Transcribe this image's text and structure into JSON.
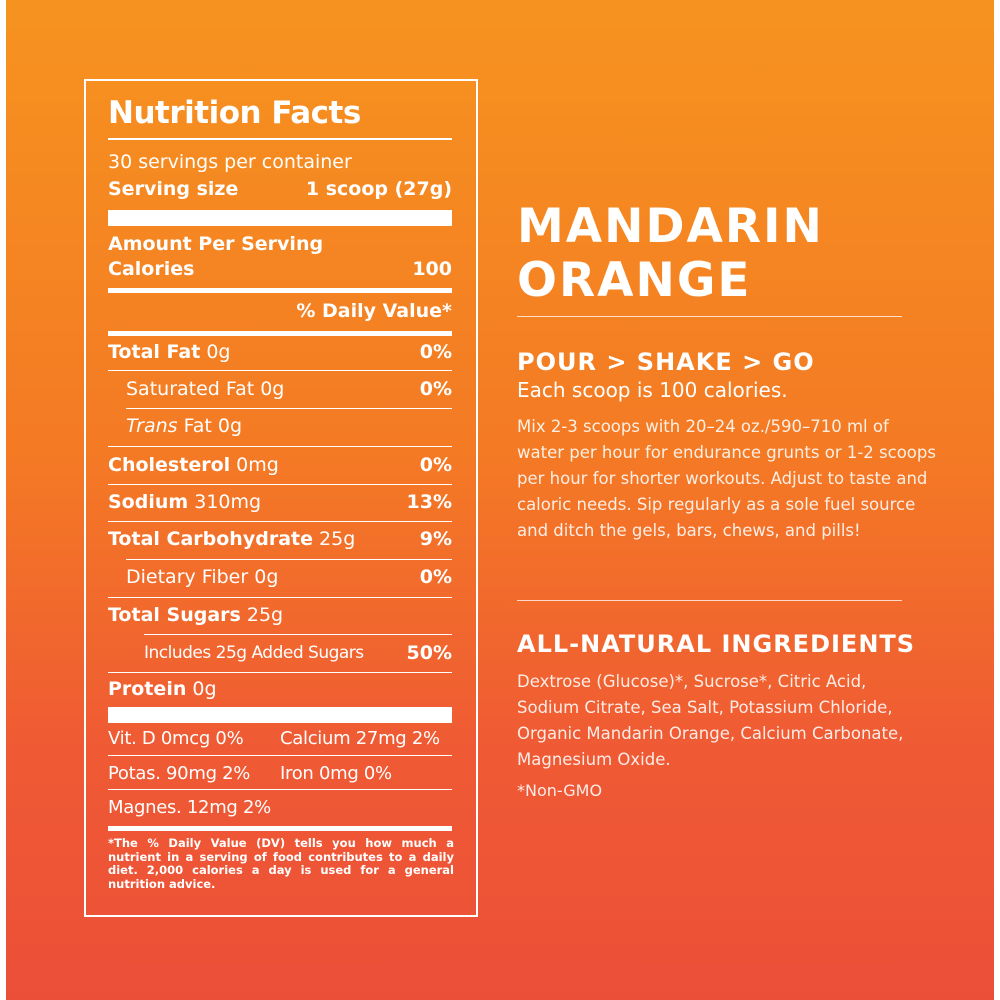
{
  "nutrition": {
    "title": "Nutrition Facts",
    "servings": "30 servings per container",
    "serving_size_label": "Serving size",
    "serving_size_value": "1 scoop (27g)",
    "amount_per_serving": "Amount Per Serving",
    "calories_label": "Calories",
    "calories_value": "100",
    "dv_header": "% Daily Value*",
    "rows": [
      {
        "label": "Total Fat",
        "amount": " 0g",
        "dv": "0%"
      },
      {
        "label": "Saturated Fat",
        "amount": " 0g",
        "dv": "0%"
      },
      {
        "label_italic": "Trans",
        "label": " Fat",
        "amount": " 0g",
        "dv": ""
      },
      {
        "label": "Cholesterol",
        "amount": " 0mg",
        "dv": "0%"
      },
      {
        "label": "Sodium",
        "amount": " 310mg",
        "dv": "13%"
      },
      {
        "label": "Total Carbohydrate",
        "amount": " 25g",
        "dv": "9%"
      },
      {
        "label": "Dietary Fiber",
        "amount": " 0g",
        "dv": "0%"
      },
      {
        "label": "Total Sugars",
        "amount": " 25g",
        "dv": ""
      },
      {
        "label": "Includes 25g Added Sugars",
        "amount": "",
        "dv": "50%"
      },
      {
        "label": "Protein",
        "amount": " 0g",
        "dv": ""
      }
    ],
    "vitamins": [
      {
        "left": "Vit. D 0mcg 0%",
        "right": "Calcium 27mg 2%"
      },
      {
        "left": "Potas. 90mg 2%",
        "right": "Iron 0mg 0%"
      },
      {
        "left": "Magnes. 12mg 2%",
        "right": ""
      }
    ],
    "footnote": "*The % Daily Value (DV) tells you how much a nutrient in a serving of food contributes to a daily diet. 2,000 calories a day is used for a general nutrition advice."
  },
  "product": {
    "title_line1": "MANDARIN",
    "title_line2": "ORANGE",
    "directions_heading": "POUR > SHAKE > GO",
    "directions_sub": "Each scoop is 100 calories.",
    "directions_body": "Mix 2-3 scoops with 20–24 oz./590–710 ml of water per hour for endurance grunts or 1-2 scoops per hour for shorter workouts. Adjust to taste and caloric needs. Sip regularly as a sole fuel source and ditch the gels, bars, chews, and pills!",
    "ingredients_heading": "ALL-NATURAL INGREDIENTS",
    "ingredients_body": "Dextrose (Glucose)*, Sucrose*, Citric Acid, Sodium Citrate, Sea Salt, Potassium Chloride, Organic Mandarin Orange, Calcium Carbonate, Magnesium Oxide.",
    "non_gmo": "*Non-GMO"
  },
  "colors": {
    "top": "#f6931f",
    "bottom": "#ec4f38",
    "text": "#ffffff"
  }
}
